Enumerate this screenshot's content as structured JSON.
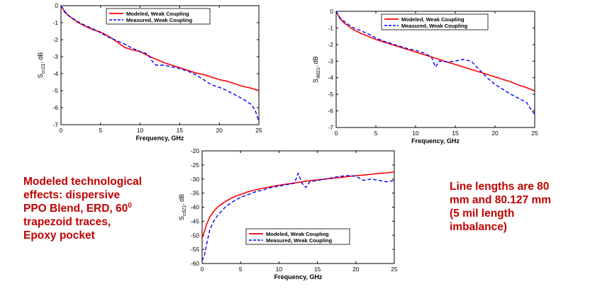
{
  "chart_data": [
    {
      "type": "line",
      "xlabel": "Frequency, GHz",
      "ylabel": "S",
      "ylabel_sub": "cc21",
      "ylabel_unit": ", dB",
      "xlim": [
        0,
        25
      ],
      "ylim": [
        -7,
        0
      ],
      "xticks": [
        0,
        5,
        10,
        15,
        20,
        25
      ],
      "yticks": [
        0,
        -1,
        -2,
        -3,
        -4,
        -5,
        -6,
        -7
      ],
      "legend": "top-right",
      "series": [
        {
          "name": "Modeled, Weak Coupling",
          "color": "#ff0000",
          "dash": "solid",
          "x": [
            0,
            0.5,
            1,
            2,
            3,
            4,
            5,
            6,
            7,
            8,
            9,
            10,
            11,
            12,
            13,
            14,
            15,
            16,
            17,
            18,
            19,
            20,
            21,
            22,
            23,
            24,
            25
          ],
          "y": [
            0,
            -0.4,
            -0.6,
            -0.95,
            -1.2,
            -1.4,
            -1.55,
            -1.8,
            -2.1,
            -2.45,
            -2.6,
            -2.7,
            -2.95,
            -3.15,
            -3.35,
            -3.5,
            -3.65,
            -3.8,
            -3.95,
            -4.05,
            -4.2,
            -4.35,
            -4.45,
            -4.6,
            -4.75,
            -4.85,
            -5.0
          ]
        },
        {
          "name": "Measured, Weak Coupling",
          "color": "#0000ff",
          "dash": "dashed",
          "x": [
            0,
            0.5,
            1,
            2,
            3,
            4,
            5,
            6,
            7,
            8,
            9,
            10,
            11,
            11.5,
            12,
            13,
            14,
            15,
            16,
            17,
            18,
            19,
            20,
            21,
            22,
            23,
            24,
            24.5,
            25
          ],
          "y": [
            0,
            -0.35,
            -0.6,
            -0.9,
            -1.15,
            -1.35,
            -1.6,
            -1.85,
            -2.05,
            -2.25,
            -2.5,
            -2.7,
            -2.85,
            -3.25,
            -3.5,
            -3.5,
            -3.6,
            -3.7,
            -3.85,
            -4.05,
            -4.35,
            -4.65,
            -4.8,
            -5.0,
            -5.25,
            -5.5,
            -5.8,
            -6.1,
            -6.8
          ]
        }
      ]
    },
    {
      "type": "line",
      "xlabel": "Frequency, GHz",
      "ylabel": "S",
      "ylabel_sub": "dd21",
      "ylabel_unit": ", dB",
      "xlim": [
        0,
        25
      ],
      "ylim": [
        -7,
        0
      ],
      "xticks": [
        0,
        5,
        10,
        15,
        20,
        25
      ],
      "yticks": [
        0,
        -1,
        -2,
        -3,
        -4,
        -5,
        -6,
        -7
      ],
      "legend": "top-right",
      "series": [
        {
          "name": "Modeled, Weak Coupling",
          "color": "#ff0000",
          "dash": "solid",
          "x": [
            0,
            0.5,
            1,
            2,
            3,
            4,
            5,
            6,
            7,
            8,
            9,
            10,
            11,
            12,
            13,
            14,
            15,
            16,
            17,
            18,
            19,
            20,
            21,
            22,
            23,
            24,
            25
          ],
          "y": [
            0,
            -0.45,
            -0.7,
            -1.05,
            -1.3,
            -1.5,
            -1.7,
            -1.85,
            -2.0,
            -2.15,
            -2.3,
            -2.45,
            -2.6,
            -2.75,
            -2.9,
            -3.05,
            -3.2,
            -3.35,
            -3.5,
            -3.65,
            -3.8,
            -3.95,
            -4.1,
            -4.25,
            -4.45,
            -4.6,
            -4.8
          ]
        },
        {
          "name": "Measured, Weak Coupling",
          "color": "#0000ff",
          "dash": "dashed",
          "x": [
            0,
            0.5,
            1,
            2,
            3,
            4,
            5,
            6,
            7,
            8,
            9,
            10,
            11,
            12,
            12.5,
            13,
            14,
            15,
            16,
            17,
            18,
            19,
            20,
            21,
            22,
            23,
            24,
            24.5,
            25
          ],
          "y": [
            0,
            -0.4,
            -0.6,
            -0.95,
            -1.15,
            -1.35,
            -1.6,
            -1.8,
            -1.95,
            -2.1,
            -2.25,
            -2.35,
            -2.5,
            -2.75,
            -3.35,
            -3.0,
            -3.05,
            -3.0,
            -2.9,
            -3.0,
            -3.5,
            -4.0,
            -4.4,
            -4.7,
            -5.0,
            -5.25,
            -5.5,
            -5.9,
            -6.2
          ]
        }
      ]
    },
    {
      "type": "line",
      "xlabel": "Frequency, GHz",
      "ylabel": "S",
      "ylabel_sub": "cd21",
      "ylabel_unit": ", dB",
      "xlim": [
        0,
        25
      ],
      "ylim": [
        -60,
        -20
      ],
      "xticks": [
        0,
        5,
        10,
        15,
        20,
        25
      ],
      "yticks": [
        -20,
        -25,
        -30,
        -35,
        -40,
        -45,
        -50,
        -55,
        -60
      ],
      "legend": "bottom-right",
      "series": [
        {
          "name": "Modeled, Weak Coupling",
          "color": "#ff0000",
          "dash": "solid",
          "x": [
            0,
            0.3,
            0.6,
            1,
            1.5,
            2,
            3,
            4,
            5,
            6,
            7,
            8,
            9,
            10,
            11,
            12,
            13,
            14,
            15,
            16,
            17,
            18,
            19,
            20,
            21,
            22,
            23,
            24,
            25
          ],
          "y": [
            -51,
            -48.5,
            -46,
            -43.5,
            -41.5,
            -40,
            -38,
            -36.5,
            -35.5,
            -34.5,
            -33.8,
            -33.2,
            -32.7,
            -32.2,
            -31.8,
            -31.4,
            -31.0,
            -30.6,
            -30.3,
            -30.0,
            -29.7,
            -29.4,
            -29.1,
            -28.8,
            -28.6,
            -28.3,
            -28.0,
            -27.8,
            -27.5
          ]
        },
        {
          "name": "Measured, Weak Coupling",
          "color": "#0000ff",
          "dash": "dashed",
          "x": [
            0,
            0.3,
            0.6,
            1,
            1.5,
            2,
            3,
            4,
            5,
            6,
            7,
            8,
            9,
            10,
            11,
            12,
            12.5,
            13,
            13.5,
            14,
            15,
            16,
            17,
            18,
            19,
            20,
            21,
            22,
            23,
            24,
            25
          ],
          "y": [
            -59,
            -57,
            -53,
            -48,
            -45,
            -43,
            -40,
            -38,
            -36.5,
            -35.5,
            -34.5,
            -33.8,
            -33.0,
            -32.5,
            -32.0,
            -31.5,
            -28.0,
            -31.5,
            -33.0,
            -31.0,
            -30.5,
            -30.0,
            -29.5,
            -29.0,
            -28.8,
            -29.0,
            -30.5,
            -30.0,
            -30.5,
            -31.0,
            -30.5
          ]
        }
      ]
    }
  ],
  "notes": {
    "left": [
      "Modeled technological",
      "effects: dispersive",
      "PPO Blend, ERD, 60",
      "trapezoid traces,",
      "Epoxy pocket"
    ],
    "left_sup": "0",
    "right": [
      "Line lengths are 80",
      "mm and 80.127 mm",
      "(5 mil length",
      "imbalance)"
    ]
  }
}
